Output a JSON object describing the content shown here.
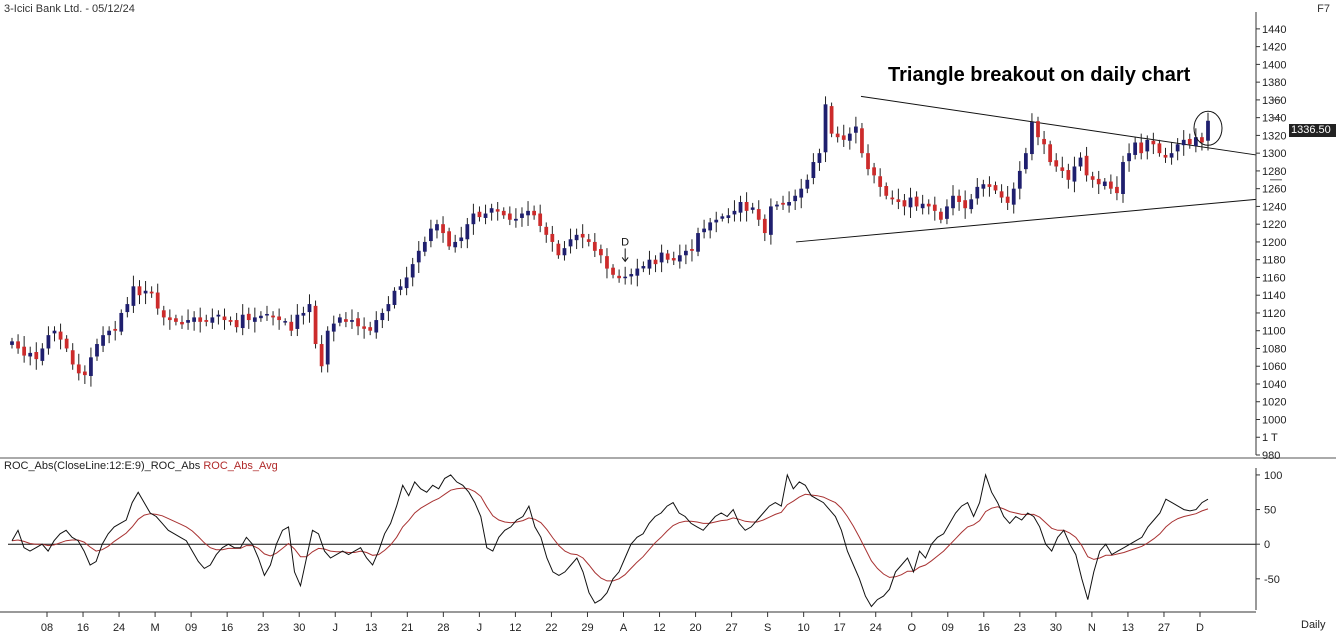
{
  "header": {
    "title": "3-Icici Bank Ltd. - 05/12/24",
    "key": "F7"
  },
  "annotation": "Triangle breakout on daily chart",
  "marker_d": "D",
  "last_price_tag": "1336.50",
  "timeframe": "Daily",
  "colors": {
    "up": "#1f1f6e",
    "down": "#cc2b2b",
    "roc": "#111111",
    "roc_avg": "#a83232",
    "trend": "#111111"
  },
  "roc_legend": {
    "main": "ROC_Abs(CloseLine:12:E:9)_ROC_Abs",
    "avg": "ROC_Abs_Avg"
  },
  "chart_data": [
    {
      "type": "candlestick",
      "title": "3-Icici Bank Ltd. - 05/12/24",
      "ylim": [
        960,
        1450
      ],
      "y_ticks": [
        "1440",
        "1420",
        "1400",
        "1380",
        "1360",
        "1340",
        "1320",
        "1300",
        "1280",
        "1260",
        "1240",
        "1220",
        "1200",
        "1180",
        "1160",
        "1140",
        "1120",
        "1100",
        "1080",
        "1060",
        "1040",
        "1020",
        "1000",
        "1 T",
        "980"
      ],
      "x_labels": [
        "08",
        "16",
        "24",
        "M",
        "09",
        "16",
        "23",
        "30",
        "J",
        "13",
        "21",
        "28",
        "J",
        "12",
        "22",
        "29",
        "A",
        "12",
        "20",
        "27",
        "S",
        "10",
        "17",
        "24",
        "O",
        "09",
        "16",
        "23",
        "30",
        "N",
        "13",
        "27",
        "D"
      ],
      "closes": [
        1088,
        1080,
        1072,
        1075,
        1068,
        1080,
        1095,
        1100,
        1090,
        1080,
        1062,
        1052,
        1050,
        1070,
        1085,
        1095,
        1100,
        1100,
        1120,
        1130,
        1150,
        1140,
        1145,
        1142,
        1125,
        1115,
        1112,
        1110,
        1108,
        1112,
        1115,
        1110,
        1110,
        1115,
        1118,
        1112,
        1110,
        1104,
        1118,
        1112,
        1115,
        1116,
        1118,
        1115,
        1112,
        1110,
        1100,
        1118,
        1120,
        1130,
        1085,
        1060,
        1100,
        1108,
        1115,
        1110,
        1112,
        1105,
        1103,
        1100,
        1112,
        1120,
        1130,
        1145,
        1150,
        1160,
        1175,
        1190,
        1200,
        1215,
        1220,
        1210,
        1195,
        1200,
        1205,
        1220,
        1232,
        1228,
        1232,
        1238,
        1235,
        1230,
        1225,
        1226,
        1232,
        1235,
        1230,
        1218,
        1208,
        1200,
        1185,
        1193,
        1203,
        1208,
        1205,
        1200,
        1190,
        1185,
        1170,
        1163,
        1160,
        1160,
        1163,
        1170,
        1172,
        1180,
        1175,
        1188,
        1180,
        1180,
        1185,
        1190,
        1190,
        1210,
        1215,
        1222,
        1225,
        1228,
        1230,
        1235,
        1245,
        1235,
        1238,
        1225,
        1210,
        1240,
        1242,
        1242,
        1245,
        1252,
        1260,
        1270,
        1290,
        1300,
        1355,
        1322,
        1318,
        1315,
        1322,
        1330,
        1300,
        1282,
        1275,
        1262,
        1252,
        1248,
        1245,
        1240,
        1250,
        1240,
        1243,
        1240,
        1235,
        1225,
        1240,
        1252,
        1245,
        1238,
        1248,
        1262,
        1265,
        1262,
        1258,
        1250,
        1244,
        1260,
        1280,
        1300,
        1335,
        1318,
        1310,
        1290,
        1285,
        1280,
        1270,
        1285,
        1295,
        1275,
        1270,
        1265,
        1268,
        1260,
        1255,
        1290,
        1300,
        1312,
        1300,
        1315,
        1310,
        1300,
        1295,
        1300,
        1310,
        1315,
        1310,
        1318,
        1312,
        1336.5
      ],
      "roc": {
        "series": [
          {
            "name": "ROC_Abs(CloseLine:12:E:9)_ROC_Abs",
            "ylim": [
              -95,
              110
            ],
            "y_ticks": [
              100,
              50,
              0,
              -50
            ],
            "values": [
              5,
              20,
              -5,
              -10,
              -5,
              0,
              -10,
              5,
              15,
              20,
              10,
              5,
              -10,
              -30,
              -25,
              0,
              15,
              25,
              30,
              35,
              60,
              75,
              60,
              45,
              40,
              30,
              20,
              15,
              10,
              5,
              -10,
              -25,
              -35,
              -30,
              -15,
              -5,
              0,
              -5,
              -5,
              10,
              0,
              -20,
              -45,
              -30,
              0,
              20,
              25,
              -40,
              -60,
              -20,
              20,
              15,
              -10,
              -20,
              -15,
              -10,
              -15,
              -10,
              -5,
              -20,
              -30,
              -10,
              15,
              30,
              55,
              85,
              70,
              90,
              80,
              75,
              85,
              80,
              95,
              100,
              90,
              85,
              75,
              60,
              40,
              -5,
              -10,
              10,
              20,
              25,
              35,
              40,
              55,
              25,
              10,
              -20,
              -40,
              -45,
              -40,
              -30,
              -20,
              -40,
              -70,
              -85,
              -80,
              -70,
              -50,
              -40,
              -20,
              0,
              10,
              15,
              30,
              40,
              45,
              55,
              60,
              45,
              40,
              30,
              25,
              20,
              30,
              40,
              45,
              40,
              50,
              30,
              20,
              25,
              35,
              45,
              55,
              60,
              55,
              100,
              80,
              90,
              85,
              70,
              65,
              60,
              50,
              40,
              20,
              -10,
              -30,
              -50,
              -75,
              -90,
              -80,
              -75,
              -65,
              -40,
              -30,
              -20,
              -40,
              -10,
              -20,
              0,
              10,
              15,
              30,
              45,
              55,
              60,
              40,
              60,
              100,
              75,
              60,
              40,
              30,
              40,
              35,
              45,
              40,
              25,
              0,
              -10,
              10,
              20,
              0,
              -15,
              -50,
              -80,
              -40,
              -10,
              0,
              -15,
              -10,
              -5,
              0,
              5,
              10,
              25,
              35,
              45,
              65,
              60,
              55,
              50,
              48,
              50,
              60,
              65
            ]
          },
          {
            "name": "ROC_Abs_Avg",
            "values": [
              5,
              6,
              4,
              1,
              0,
              0,
              -2,
              -1,
              2,
              5,
              6,
              6,
              3,
              -4,
              -10,
              -8,
              -3,
              4,
              10,
              16,
              25,
              36,
              42,
              44,
              43,
              41,
              37,
              33,
              29,
              25,
              19,
              11,
              2,
              -5,
              -8,
              -8,
              -6,
              -6,
              -6,
              -2,
              -2,
              -6,
              -14,
              -17,
              -13,
              -6,
              1,
              -7,
              -18,
              -18,
              -11,
              -6,
              -7,
              -10,
              -11,
              -11,
              -12,
              -12,
              -10,
              -12,
              -16,
              -15,
              -9,
              -1,
              10,
              25,
              34,
              45,
              52,
              57,
              62,
              66,
              72,
              78,
              80,
              81,
              80,
              76,
              69,
              54,
              41,
              35,
              32,
              31,
              32,
              34,
              38,
              36,
              31,
              21,
              9,
              -2,
              -10,
              -14,
              -15,
              -20,
              -30,
              -41,
              -49,
              -53,
              -53,
              -50,
              -44,
              -35,
              -26,
              -18,
              -8,
              2,
              10,
              19,
              27,
              31,
              33,
              33,
              32,
              30,
              30,
              32,
              34,
              35,
              38,
              36,
              33,
              32,
              32,
              35,
              39,
              43,
              46,
              57,
              62,
              68,
              72,
              71,
              70,
              68,
              64,
              60,
              52,
              40,
              26,
              10,
              -7,
              -24,
              -35,
              -43,
              -48,
              -47,
              -44,
              -39,
              -39,
              -33,
              -30,
              -24,
              -17,
              -10,
              -1,
              8,
              17,
              25,
              28,
              34,
              47,
              52,
              54,
              51,
              47,
              45,
              43,
              43,
              43,
              39,
              31,
              23,
              20,
              20,
              16,
              10,
              -2,
              -18,
              -22,
              -20,
              -16,
              -16,
              -14,
              -12,
              -9,
              -6,
              -3,
              2,
              8,
              15,
              25,
              32,
              37,
              40,
              42,
              44,
              48,
              51
            ]
          }
        ]
      }
    }
  ]
}
